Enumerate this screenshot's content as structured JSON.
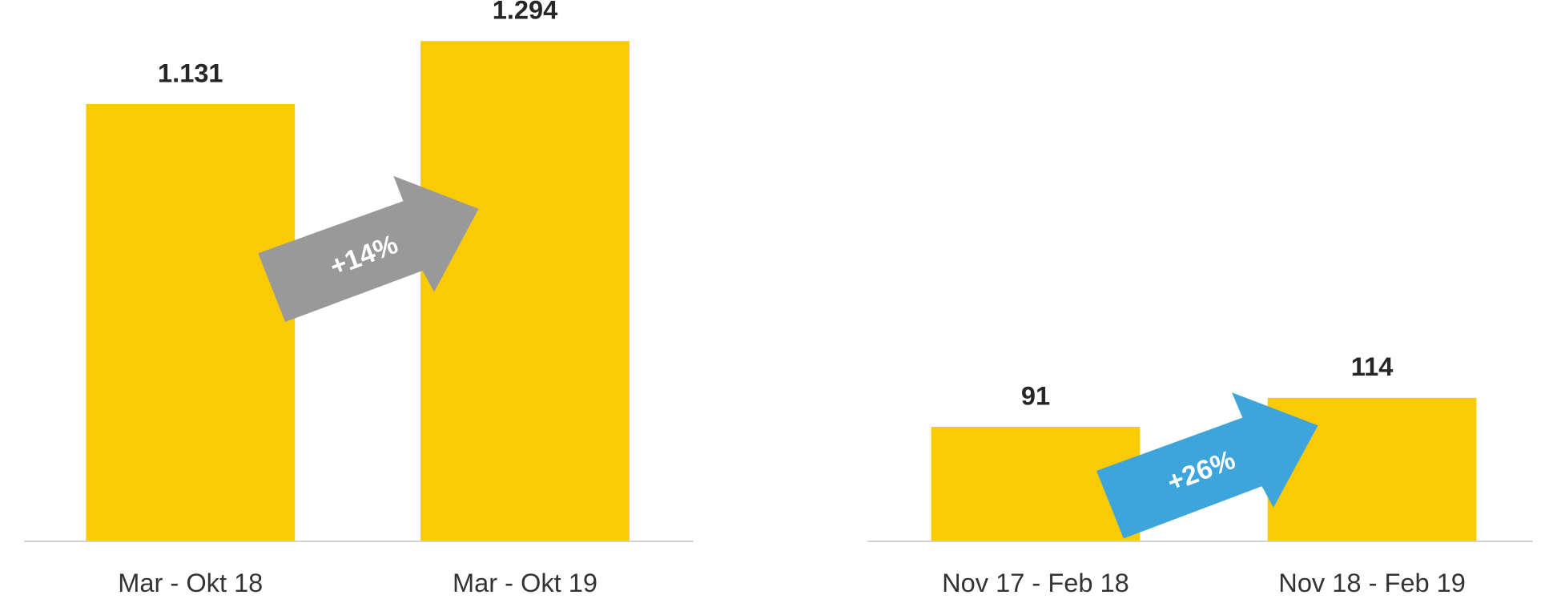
{
  "chart_data": [
    {
      "type": "bar",
      "categories": [
        "Mar - Okt 18",
        "Mar - Okt 19"
      ],
      "values": [
        1131,
        1294
      ],
      "value_labels": [
        "1.131",
        "1.294"
      ],
      "color": "#FACB05",
      "ylim": [
        0,
        1400
      ],
      "annotation": {
        "text": "+14%",
        "color": "#999999"
      }
    },
    {
      "type": "bar",
      "categories": [
        "Nov 17 - Feb 18",
        "Nov 18 - Feb 19"
      ],
      "values": [
        91,
        114
      ],
      "value_labels": [
        "91",
        "114"
      ],
      "color": "#FACB05",
      "ylim": [
        0,
        430
      ],
      "annotation": {
        "text": "+26%",
        "color": "#3EA5DC"
      }
    }
  ]
}
